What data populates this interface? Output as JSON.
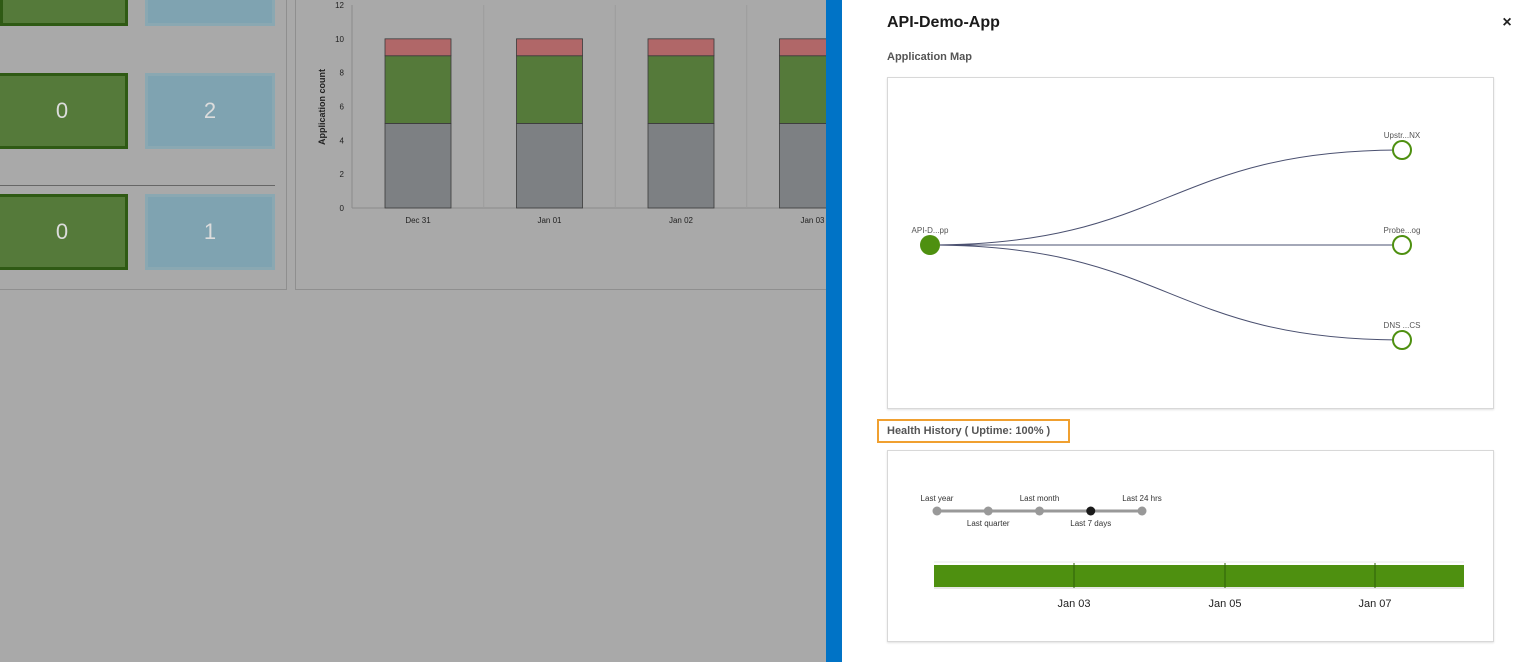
{
  "background": {
    "tiles": [
      {
        "value": "0",
        "kind": "green"
      },
      {
        "value": "2",
        "kind": "blue"
      },
      {
        "value": "0",
        "kind": "green"
      },
      {
        "value": "1",
        "kind": "blue"
      }
    ]
  },
  "chart_data": {
    "type": "bar",
    "stacked": true,
    "categories": [
      "Dec 31",
      "Jan 01",
      "Jan 02",
      "Jan 03"
    ],
    "series": [
      {
        "color": "#7d8083",
        "values": [
          5,
          5,
          5,
          5
        ]
      },
      {
        "color": "#557a3a",
        "values": [
          4,
          4,
          4,
          4
        ]
      },
      {
        "color": "#b06768",
        "values": [
          1,
          1,
          1,
          1
        ]
      }
    ],
    "ylabel": "Application count",
    "ylim": [
      0,
      12
    ],
    "yticks": [
      "0",
      "2",
      "4",
      "6",
      "8",
      "10",
      "12"
    ]
  },
  "drawer": {
    "title": "API-Demo-App",
    "close_icon": "×",
    "app_map_label": "Application Map",
    "app_map": {
      "source": "API-D...pp",
      "targets": [
        "Upstr...NX",
        "Probe...og",
        "DNS ...CS"
      ]
    },
    "health_label": "Health History ( Uptime: 100% )",
    "health": {
      "ranges": [
        {
          "label": "Last year",
          "pos": "above"
        },
        {
          "label": "Last quarter",
          "pos": "below"
        },
        {
          "label": "Last month",
          "pos": "above"
        },
        {
          "label": "Last 7 days",
          "pos": "below",
          "selected": true
        },
        {
          "label": "Last 24 hrs",
          "pos": "above"
        }
      ],
      "bar_color": "#4e9010",
      "dates": [
        "Jan 03",
        "Jan 05",
        "Jan 07"
      ]
    }
  }
}
